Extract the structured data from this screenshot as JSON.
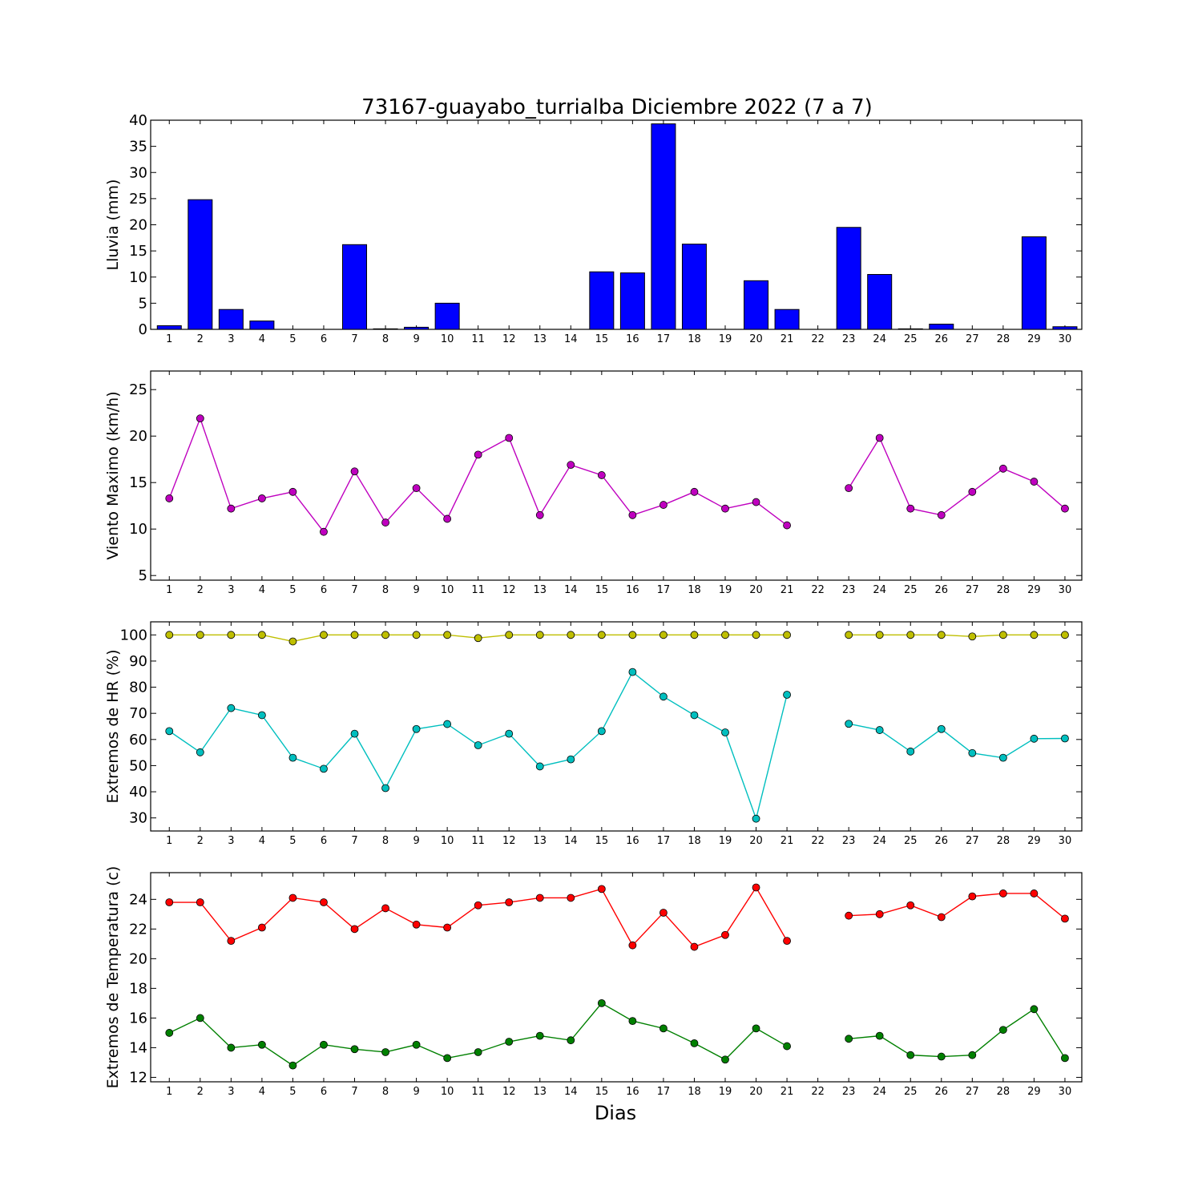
{
  "title": "73167-guayabo_turrialba Diciembre 2022  (7 a 7)",
  "xlabel": "Dias",
  "days": [
    1,
    2,
    3,
    4,
    5,
    6,
    7,
    8,
    9,
    10,
    11,
    12,
    13,
    14,
    15,
    16,
    17,
    18,
    19,
    20,
    21,
    22,
    23,
    24,
    25,
    26,
    27,
    28,
    29,
    30
  ],
  "chart_data": [
    {
      "type": "bar",
      "ylabel": "Lluvia (mm)",
      "ylim": [
        0,
        40
      ],
      "yticks": [
        0,
        5,
        10,
        15,
        20,
        25,
        30,
        35,
        40
      ],
      "categories": [
        1,
        2,
        3,
        4,
        5,
        6,
        7,
        8,
        9,
        10,
        11,
        12,
        13,
        14,
        15,
        16,
        17,
        18,
        19,
        20,
        21,
        22,
        23,
        24,
        25,
        26,
        27,
        28,
        29,
        30
      ],
      "color": "#0000ff",
      "values": [
        0.7,
        24.8,
        3.8,
        1.6,
        0,
        0,
        16.2,
        0.1,
        0.4,
        5.0,
        0,
        0,
        0,
        0,
        11.0,
        10.8,
        39.3,
        16.3,
        0,
        9.3,
        3.8,
        null,
        19.5,
        10.5,
        0.1,
        1.0,
        0,
        0,
        17.7,
        0.5
      ]
    },
    {
      "type": "line",
      "ylabel": "Viento Maximo (km/h)",
      "ylim": [
        4.5,
        27
      ],
      "yticks": [
        5,
        10,
        15,
        20,
        25
      ],
      "x": [
        1,
        2,
        3,
        4,
        5,
        6,
        7,
        8,
        9,
        10,
        11,
        12,
        13,
        14,
        15,
        16,
        17,
        18,
        19,
        20,
        21,
        22,
        23,
        24,
        25,
        26,
        27,
        28,
        29,
        30
      ],
      "series": [
        {
          "color": "#bf00bf",
          "values": [
            13.3,
            21.9,
            12.2,
            13.3,
            14.0,
            9.7,
            16.2,
            10.7,
            14.4,
            11.1,
            18.0,
            19.8,
            11.5,
            16.9,
            15.8,
            11.5,
            12.6,
            14.0,
            12.2,
            12.9,
            10.4,
            null,
            14.4,
            19.8,
            12.2,
            11.5,
            14.0,
            16.5,
            15.1,
            12.2
          ]
        }
      ]
    },
    {
      "type": "line",
      "ylabel": "Extremos de HR (%)",
      "ylim": [
        25,
        105
      ],
      "yticks": [
        30,
        40,
        50,
        60,
        70,
        80,
        90,
        100
      ],
      "x": [
        1,
        2,
        3,
        4,
        5,
        6,
        7,
        8,
        9,
        10,
        11,
        12,
        13,
        14,
        15,
        16,
        17,
        18,
        19,
        20,
        21,
        22,
        23,
        24,
        25,
        26,
        27,
        28,
        29,
        30
      ],
      "series": [
        {
          "color": "#bfbf00",
          "values": [
            100,
            100,
            100,
            100,
            97.5,
            100,
            100,
            100,
            100,
            100,
            98.8,
            100,
            100,
            100,
            100,
            100,
            100,
            100,
            100,
            100,
            100,
            null,
            100,
            100,
            100,
            100,
            99.4,
            100,
            100,
            100
          ]
        },
        {
          "color": "#00bfbf",
          "values": [
            63.2,
            55.1,
            72.0,
            69.3,
            53.0,
            48.8,
            62.2,
            41.4,
            64.0,
            65.9,
            57.8,
            62.2,
            49.7,
            52.4,
            63.2,
            85.8,
            76.4,
            69.3,
            62.7,
            29.7,
            77.1,
            null,
            66.0,
            63.6,
            55.4,
            64.0,
            54.8,
            53.0,
            60.3,
            60.4
          ]
        }
      ]
    },
    {
      "type": "line",
      "ylabel": "Extremos de Temperatura (c)",
      "ylim": [
        11.7,
        25.8
      ],
      "yticks": [
        12,
        14,
        16,
        18,
        20,
        22,
        24
      ],
      "x": [
        1,
        2,
        3,
        4,
        5,
        6,
        7,
        8,
        9,
        10,
        11,
        12,
        13,
        14,
        15,
        16,
        17,
        18,
        19,
        20,
        21,
        22,
        23,
        24,
        25,
        26,
        27,
        28,
        29,
        30
      ],
      "series": [
        {
          "color": "#ff0000",
          "values": [
            23.8,
            23.8,
            21.2,
            22.1,
            24.1,
            23.8,
            22.0,
            23.4,
            22.3,
            22.1,
            23.6,
            23.8,
            24.1,
            24.1,
            24.7,
            20.9,
            23.1,
            20.8,
            21.6,
            24.8,
            21.2,
            null,
            22.9,
            23.0,
            23.6,
            22.8,
            24.2,
            24.4,
            24.4,
            22.7
          ]
        },
        {
          "color": "#008000",
          "values": [
            15.0,
            16.0,
            14.0,
            14.2,
            12.8,
            14.2,
            13.9,
            13.7,
            14.2,
            13.3,
            13.7,
            14.4,
            14.8,
            14.5,
            17.0,
            15.8,
            15.3,
            14.3,
            13.2,
            15.3,
            14.1,
            null,
            14.6,
            14.8,
            13.5,
            13.4,
            13.5,
            15.2,
            16.6,
            13.3
          ]
        }
      ]
    }
  ]
}
